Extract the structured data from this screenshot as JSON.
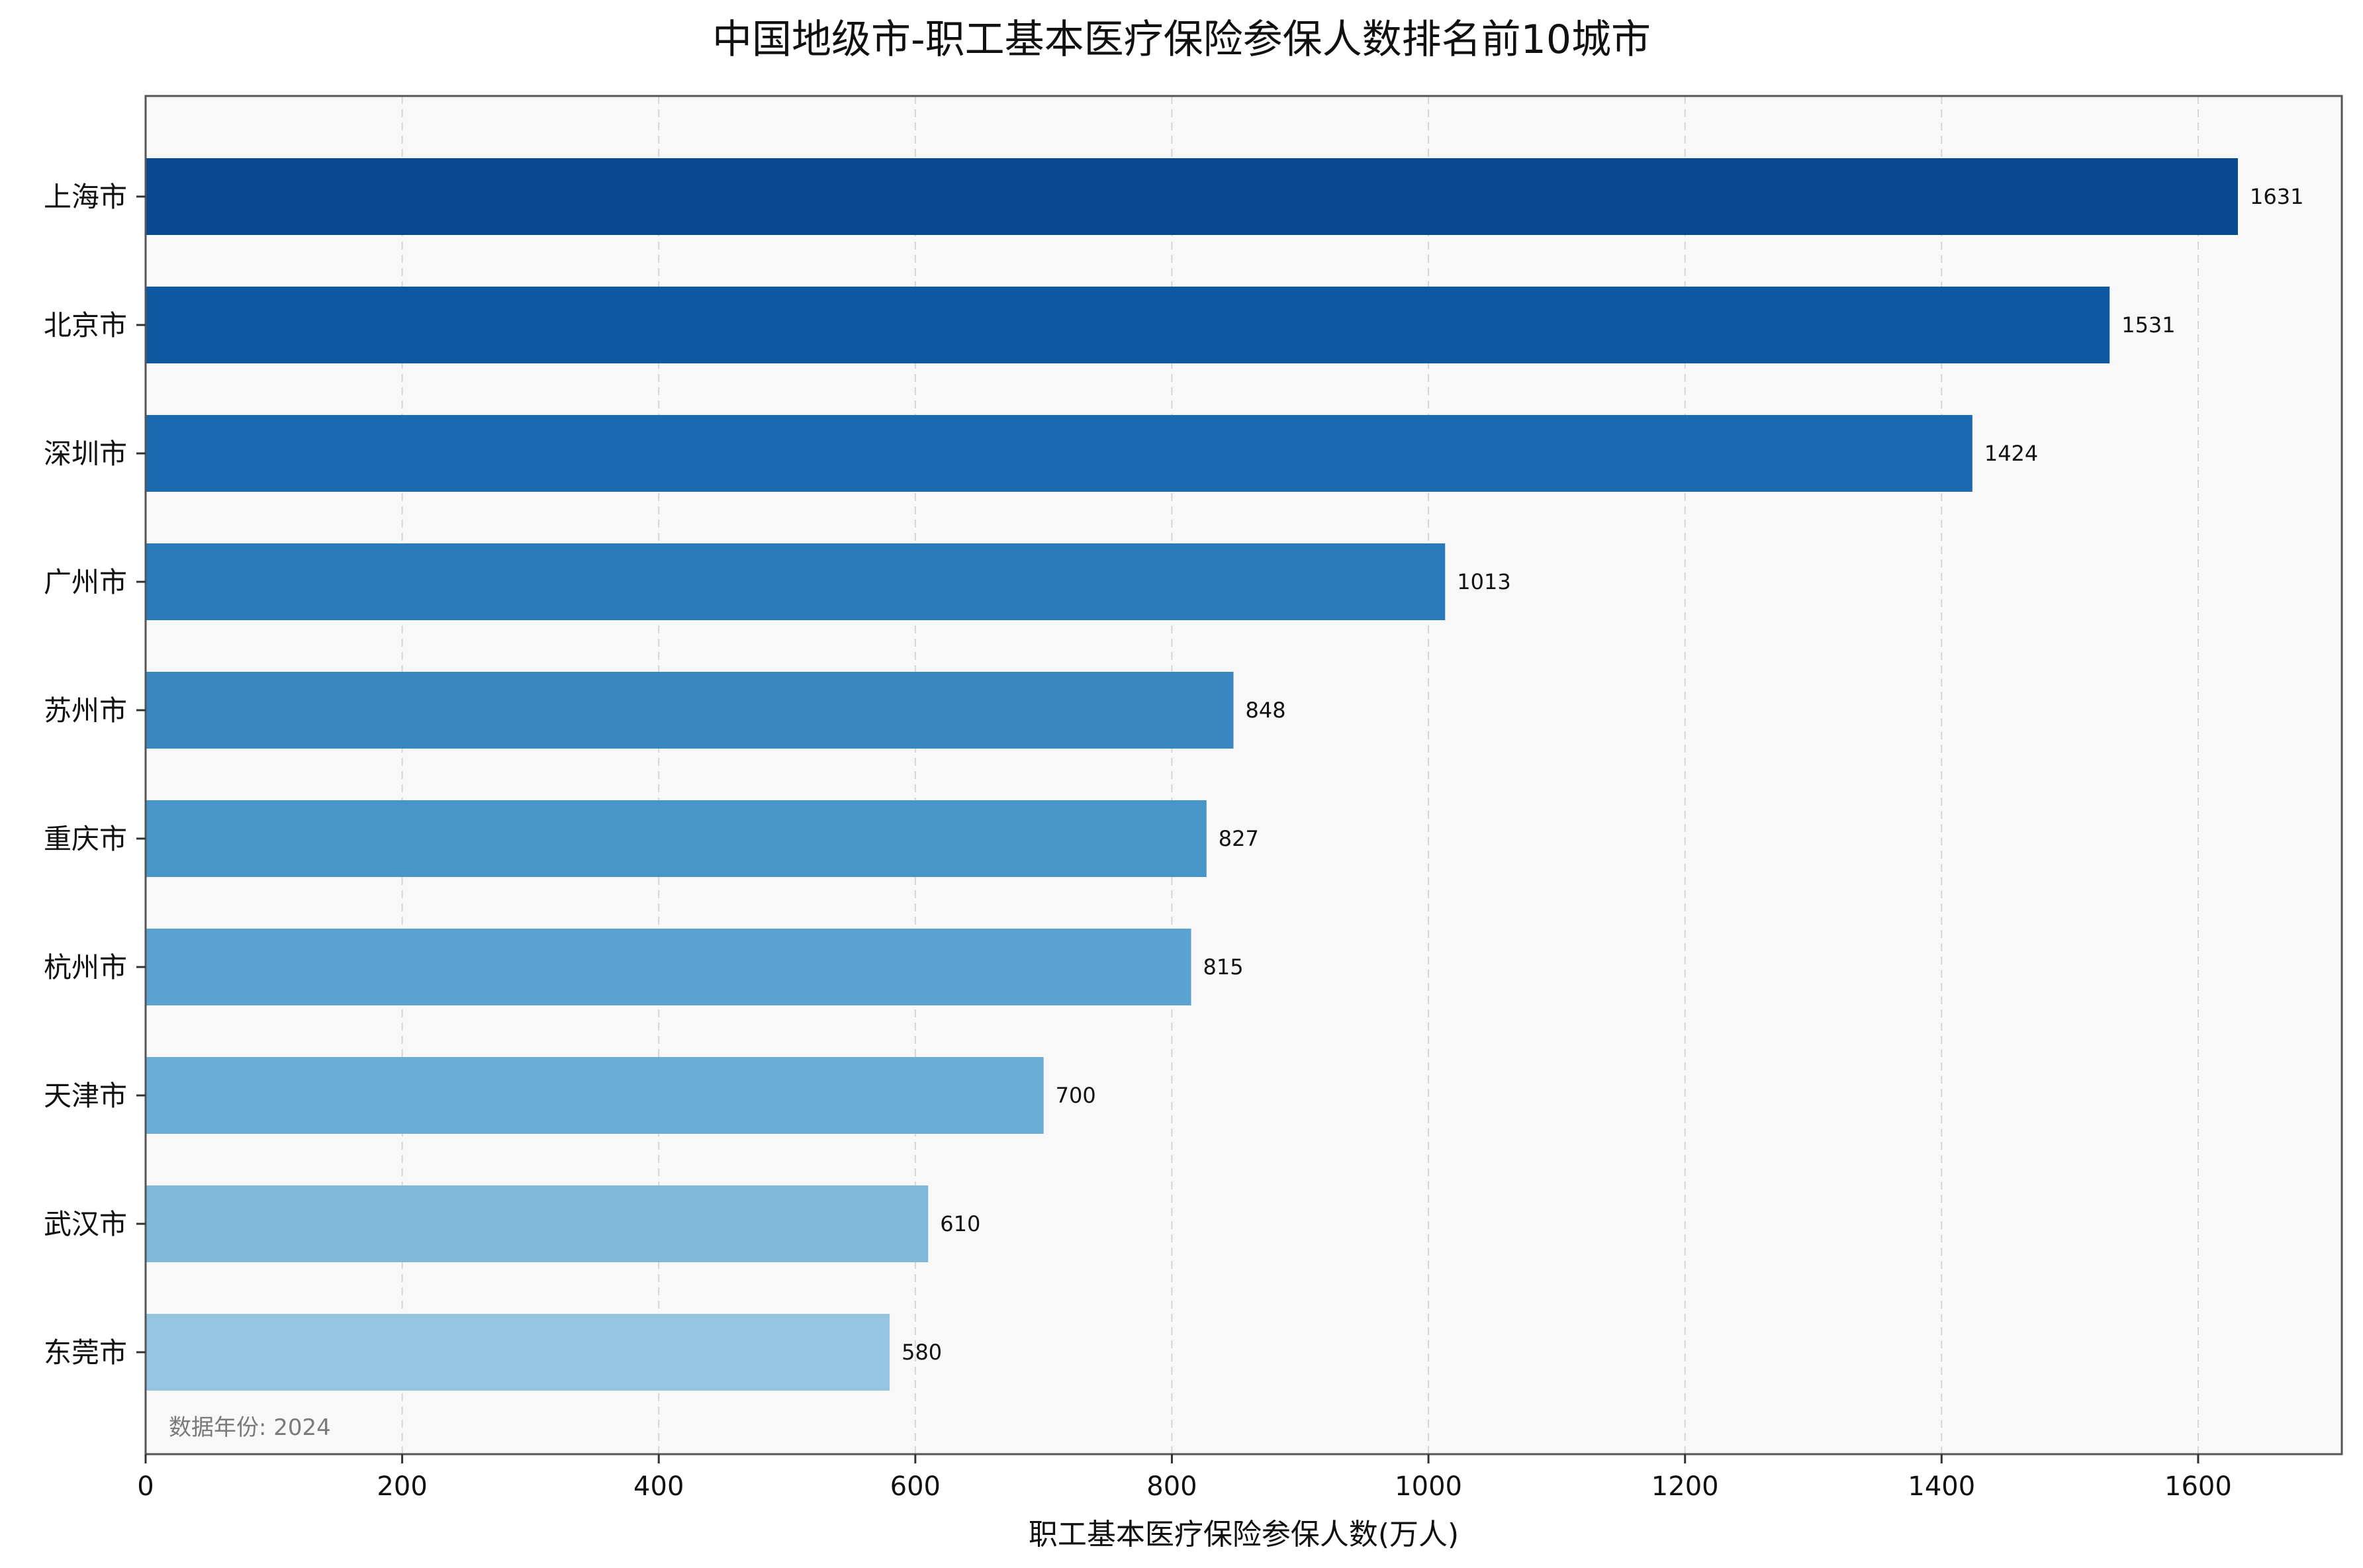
{
  "chart_data": {
    "type": "bar",
    "orientation": "horizontal",
    "title": "中国地级市-职工基本医疗保险参保人数排名前10城市",
    "xlabel": "职工基本医疗保险参保人数(万人)",
    "ylabel": "",
    "annotation": "数据年份: 2024",
    "categories": [
      "上海市",
      "北京市",
      "深圳市",
      "广州市",
      "苏州市",
      "重庆市",
      "杭州市",
      "天津市",
      "武汉市",
      "东莞市"
    ],
    "values": [
      1631,
      1531,
      1424,
      1013,
      848,
      827,
      815,
      700,
      610,
      580
    ],
    "value_labels": [
      "1631",
      "1531",
      "1424",
      "1013",
      "848",
      "827",
      "815",
      "700",
      "610",
      "580"
    ],
    "xlim": [
      0,
      1712
    ],
    "x_ticks": [
      0,
      200,
      400,
      600,
      800,
      1000,
      1200,
      1400,
      1600
    ],
    "x_tick_labels": [
      "0",
      "200",
      "400",
      "600",
      "800",
      "1000",
      "1200",
      "1400",
      "1600"
    ],
    "grid": "x-dashed",
    "legend": "none",
    "colors": [
      "#08488e",
      "#0e58a2",
      "#1b69af",
      "#2a79b9",
      "#3887c1",
      "#4896c8",
      "#5aa2cf",
      "#6aaed6",
      "#7fb8da",
      "#94c4df"
    ],
    "plot_background": "#f8f8f8"
  }
}
